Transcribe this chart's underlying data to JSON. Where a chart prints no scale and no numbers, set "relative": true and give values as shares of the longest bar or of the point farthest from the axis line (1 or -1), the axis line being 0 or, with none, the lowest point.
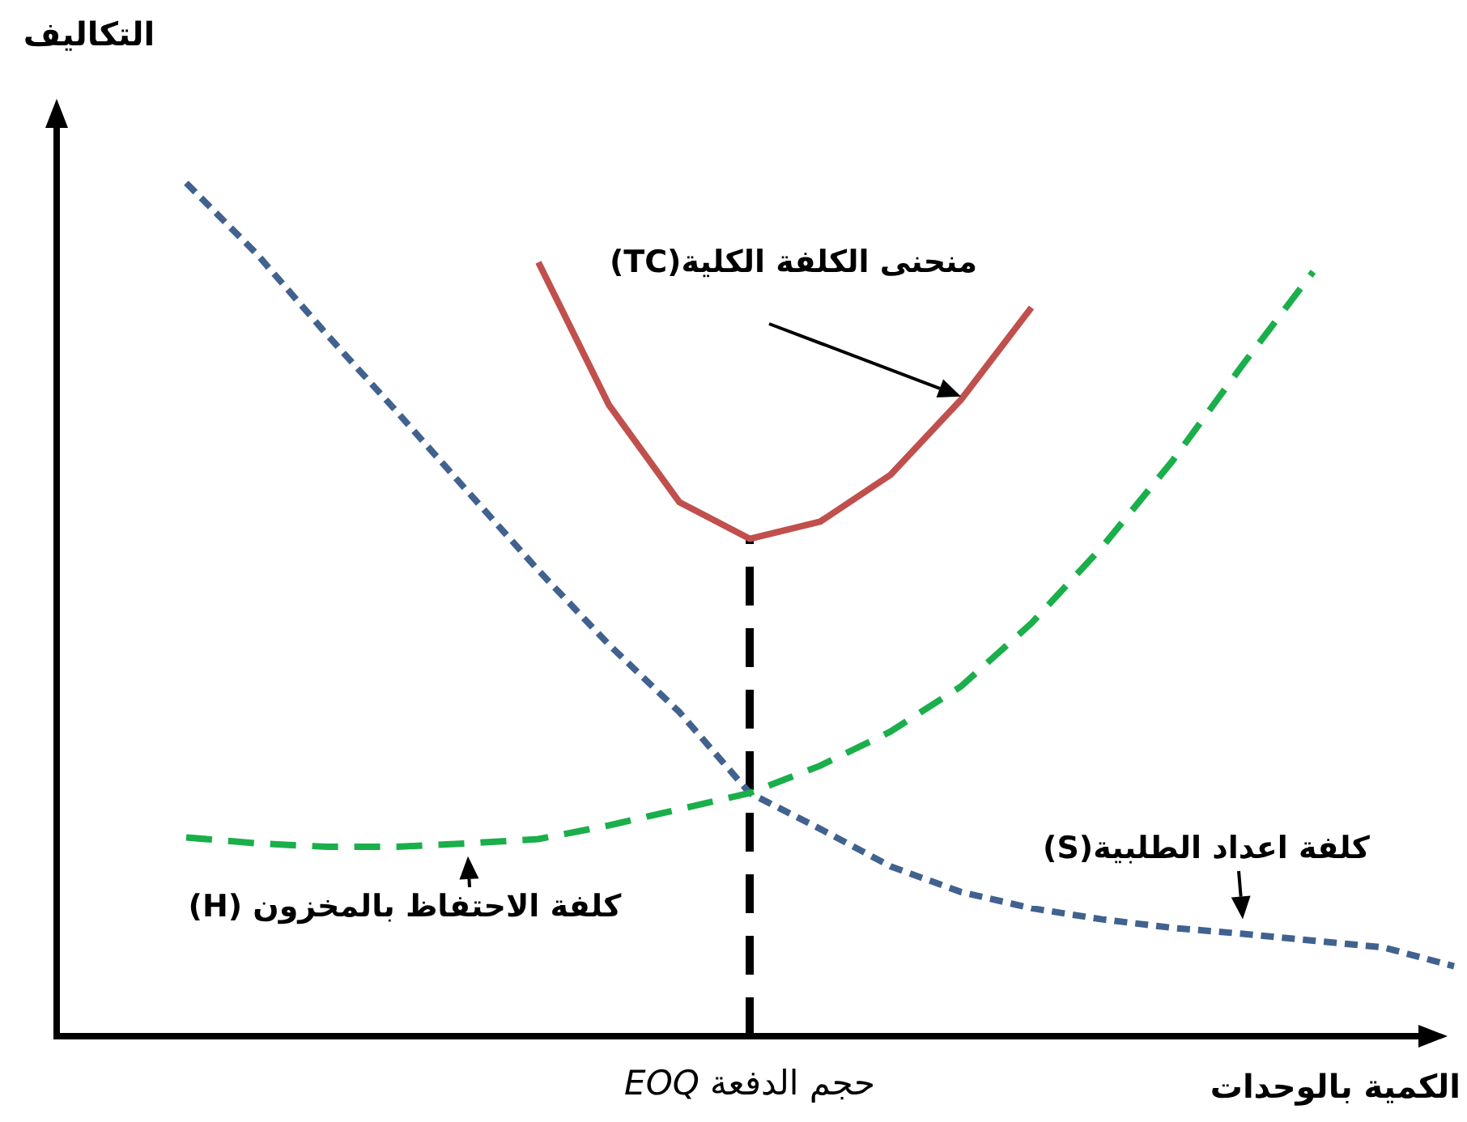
{
  "chart_data": {
    "type": "line",
    "relative": true,
    "xlabel": "الكمية بالوحدات",
    "ylabel": "التكاليف",
    "categories": [
      null,
      null,
      null,
      null,
      null,
      null,
      null,
      null,
      null,
      null,
      null,
      null,
      null,
      null,
      null,
      null,
      null,
      null,
      null
    ],
    "series": [
      {
        "name": "منحنى الكلفة الكلية(TC)",
        "color": "#c0504d",
        "line_style": "solid",
        "values": [
          null,
          null,
          null,
          null,
          null,
          0.907,
          0.74,
          0.626,
          0.583,
          0.603,
          0.658,
          0.746,
          0.854,
          null,
          null,
          null,
          null,
          null,
          null
        ]
      },
      {
        "name": "كلفة اعداد الطلبية(S)",
        "color": "#41628f",
        "line_style": "dashed",
        "values": [
          1.0,
          0.917,
          0.822,
          0.731,
          0.638,
          0.546,
          0.459,
          0.38,
          0.285,
          0.243,
          0.199,
          0.169,
          0.15,
          0.137,
          0.127,
          0.12,
          0.112,
          0.104,
          0.082
        ]
      },
      {
        "name": "كلفة الاحتفاظ بالمخزون (H)",
        "color": "#1aaf4a",
        "line_style": "dashed",
        "values": [
          0.233,
          0.226,
          0.222,
          0.222,
          0.226,
          0.231,
          0.247,
          0.266,
          0.285,
          0.317,
          0.357,
          0.41,
          0.484,
          0.573,
          0.674,
          0.787,
          0.896,
          null,
          null
        ]
      }
    ],
    "annotations": [
      "حجم الدفعة *EOQ*"
    ]
  }
}
